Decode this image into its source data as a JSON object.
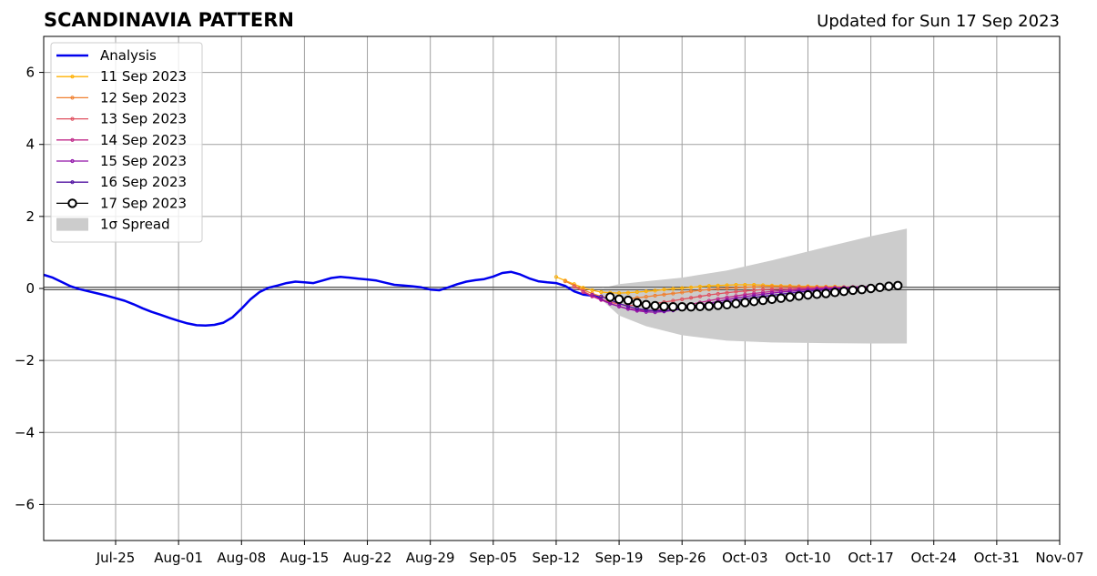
{
  "chart_data": {
    "type": "line",
    "title": "SCANDINAVIA PATTERN",
    "subtitle": "Updated for Sun 17 Sep 2023",
    "xlabel": "",
    "ylabel": "",
    "xlim": [
      "2023-07-17",
      "2023-11-07"
    ],
    "ylim": [
      -7,
      7
    ],
    "xticks": [
      "Jul-25",
      "Aug-01",
      "Aug-08",
      "Aug-15",
      "Aug-22",
      "Aug-29",
      "Sep-05",
      "Sep-12",
      "Sep-19",
      "Sep-26",
      "Oct-03",
      "Oct-10",
      "Oct-17",
      "Oct-24",
      "Oct-31",
      "Nov-07"
    ],
    "yticks": [
      -6,
      -4,
      -2,
      0,
      2,
      4,
      6
    ],
    "grid": true,
    "legend_position": "top-left",
    "analysis": {
      "name": "Analysis",
      "color": "#0000ee",
      "x": [
        "2023-07-17",
        "2023-07-18",
        "2023-07-19",
        "2023-07-20",
        "2023-07-21",
        "2023-07-22",
        "2023-07-23",
        "2023-07-24",
        "2023-07-25",
        "2023-07-26",
        "2023-07-27",
        "2023-07-28",
        "2023-07-29",
        "2023-07-30",
        "2023-07-31",
        "2023-08-01",
        "2023-08-02",
        "2023-08-03",
        "2023-08-04",
        "2023-08-05",
        "2023-08-06",
        "2023-08-07",
        "2023-08-08",
        "2023-08-09",
        "2023-08-10",
        "2023-08-11",
        "2023-08-12",
        "2023-08-13",
        "2023-08-14",
        "2023-08-15",
        "2023-08-16",
        "2023-08-17",
        "2023-08-18",
        "2023-08-19",
        "2023-08-20",
        "2023-08-21",
        "2023-08-22",
        "2023-08-23",
        "2023-08-24",
        "2023-08-25",
        "2023-08-26",
        "2023-08-27",
        "2023-08-28",
        "2023-08-29",
        "2023-08-30",
        "2023-08-31",
        "2023-09-01",
        "2023-09-02",
        "2023-09-03",
        "2023-09-04",
        "2023-09-05",
        "2023-09-06",
        "2023-09-07",
        "2023-09-08",
        "2023-09-09",
        "2023-09-10",
        "2023-09-11",
        "2023-09-12",
        "2023-09-13",
        "2023-09-14",
        "2023-09-15",
        "2023-09-16",
        "2023-09-17"
      ],
      "y": [
        0.38,
        0.3,
        0.18,
        0.06,
        -0.02,
        -0.08,
        -0.14,
        -0.2,
        -0.27,
        -0.34,
        -0.44,
        -0.55,
        -0.65,
        -0.73,
        -0.82,
        -0.9,
        -0.97,
        -1.02,
        -1.03,
        -1.01,
        -0.95,
        -0.8,
        -0.56,
        -0.3,
        -0.1,
        0.02,
        0.08,
        0.15,
        0.19,
        0.17,
        0.15,
        0.22,
        0.29,
        0.32,
        0.3,
        0.27,
        0.25,
        0.22,
        0.16,
        0.1,
        0.08,
        0.06,
        0.03,
        -0.03,
        -0.05,
        0.03,
        0.12,
        0.19,
        0.23,
        0.26,
        0.33,
        0.43,
        0.46,
        0.39,
        0.28,
        0.2,
        0.17,
        0.15,
        0.07,
        -0.08,
        -0.17,
        -0.2,
        -0.24
      ]
    },
    "series": [
      {
        "name": "11 Sep 2023",
        "color": "#ffb000",
        "start": "2023-09-12",
        "y": [
          0.32,
          0.22,
          0.12,
          0.02,
          -0.05,
          -0.1,
          -0.12,
          -0.13,
          -0.12,
          -0.1,
          -0.08,
          -0.06,
          -0.03,
          -0.01,
          0.01,
          0.03,
          0.05,
          0.07,
          0.08,
          0.09,
          0.1,
          0.1,
          0.1,
          0.09,
          0.08,
          0.07,
          0.07,
          0.06,
          0.06,
          0.05,
          0.05,
          0.05,
          0.04,
          0.04,
          0.04,
          0.03
        ]
      },
      {
        "name": "12 Sep 2023",
        "color": "#f08030",
        "start": "2023-09-13",
        "y": [
          0.2,
          0.08,
          -0.04,
          -0.14,
          -0.22,
          -0.27,
          -0.29,
          -0.28,
          -0.26,
          -0.23,
          -0.2,
          -0.17,
          -0.14,
          -0.11,
          -0.08,
          -0.05,
          -0.03,
          -0.01,
          0.01,
          0.02,
          0.03,
          0.04,
          0.05,
          0.05,
          0.05,
          0.05,
          0.05,
          0.04,
          0.04,
          0.04,
          0.03,
          0.03,
          0.03,
          0.03,
          0.02
        ]
      },
      {
        "name": "13 Sep 2023",
        "color": "#e05060",
        "start": "2023-09-14",
        "y": [
          0.05,
          -0.08,
          -0.2,
          -0.3,
          -0.38,
          -0.44,
          -0.47,
          -0.47,
          -0.45,
          -0.42,
          -0.38,
          -0.34,
          -0.3,
          -0.26,
          -0.22,
          -0.18,
          -0.15,
          -0.12,
          -0.09,
          -0.07,
          -0.05,
          -0.03,
          -0.02,
          -0.01,
          0.0,
          0.01,
          0.02,
          0.02,
          0.03,
          0.03,
          0.03,
          0.04,
          0.04,
          0.04
        ]
      },
      {
        "name": "14 Sep 2023",
        "color": "#c02a8a",
        "start": "2023-09-15",
        "y": [
          -0.1,
          -0.22,
          -0.32,
          -0.42,
          -0.5,
          -0.56,
          -0.6,
          -0.62,
          -0.61,
          -0.58,
          -0.54,
          -0.49,
          -0.44,
          -0.39,
          -0.34,
          -0.29,
          -0.25,
          -0.21,
          -0.17,
          -0.14,
          -0.11,
          -0.08,
          -0.06,
          -0.04,
          -0.02,
          -0.01,
          0.0,
          0.01,
          0.02,
          0.03,
          0.04,
          0.05,
          0.06
        ]
      },
      {
        "name": "15 Sep 2023",
        "color": "#9010a8",
        "start": "2023-09-16",
        "y": [
          -0.18,
          -0.3,
          -0.42,
          -0.5,
          -0.57,
          -0.62,
          -0.65,
          -0.66,
          -0.64,
          -0.61,
          -0.56,
          -0.51,
          -0.46,
          -0.41,
          -0.36,
          -0.31,
          -0.27,
          -0.23,
          -0.19,
          -0.16,
          -0.13,
          -0.1,
          -0.08,
          -0.06,
          -0.04,
          -0.02,
          -0.01,
          0.0,
          0.02,
          0.03,
          0.04,
          0.05
        ]
      },
      {
        "name": "16 Sep 2023",
        "color": "#5010a0",
        "start": "2023-09-17",
        "y": [
          -0.22,
          -0.32,
          -0.42,
          -0.5,
          -0.56,
          -0.6,
          -0.62,
          -0.62,
          -0.6,
          -0.57,
          -0.53,
          -0.49,
          -0.45,
          -0.41,
          -0.37,
          -0.33,
          -0.29,
          -0.25,
          -0.22,
          -0.19,
          -0.16,
          -0.13,
          -0.1,
          -0.08,
          -0.06,
          -0.04,
          -0.02,
          -0.01,
          0.0,
          0.01,
          0.02
        ]
      },
      {
        "name": "17 Sep 2023",
        "color": "#000000",
        "start": "2023-09-18",
        "markers": "open-circle",
        "y": [
          -0.24,
          -0.3,
          -0.33,
          -0.4,
          -0.45,
          -0.48,
          -0.5,
          -0.51,
          -0.51,
          -0.51,
          -0.5,
          -0.49,
          -0.47,
          -0.45,
          -0.42,
          -0.39,
          -0.36,
          -0.33,
          -0.3,
          -0.27,
          -0.24,
          -0.21,
          -0.18,
          -0.16,
          -0.14,
          -0.11,
          -0.08,
          -0.05,
          -0.03,
          0.0,
          0.03,
          0.06,
          0.08
        ]
      }
    ],
    "spread": {
      "name": "1σ Spread",
      "color": "#cccccc",
      "points": [
        {
          "x": "2023-09-17",
          "lo": -0.3,
          "hi": 0.0
        },
        {
          "x": "2023-09-19",
          "lo": -0.75,
          "hi": 0.12
        },
        {
          "x": "2023-09-22",
          "lo": -1.05,
          "hi": 0.2
        },
        {
          "x": "2023-09-26",
          "lo": -1.3,
          "hi": 0.3
        },
        {
          "x": "2023-10-01",
          "lo": -1.45,
          "hi": 0.5
        },
        {
          "x": "2023-10-06",
          "lo": -1.5,
          "hi": 0.78
        },
        {
          "x": "2023-10-12",
          "lo": -1.52,
          "hi": 1.15
        },
        {
          "x": "2023-10-17",
          "lo": -1.53,
          "hi": 1.45
        },
        {
          "x": "2023-10-21",
          "lo": -1.53,
          "hi": 1.66
        }
      ]
    }
  }
}
